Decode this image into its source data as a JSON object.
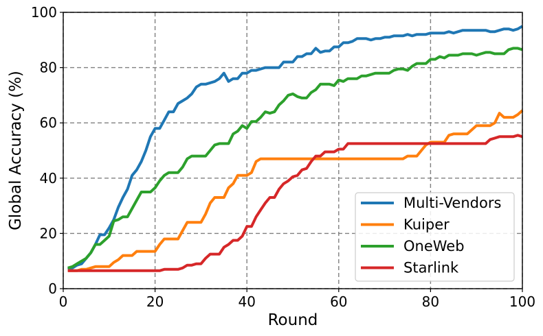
{
  "chart_data": {
    "type": "line",
    "title": "",
    "xlabel": "Round",
    "ylabel": "Global Accuracy (%)",
    "xlim": [
      0,
      100
    ],
    "ylim": [
      0,
      100
    ],
    "xticks": [
      0,
      20,
      40,
      60,
      80,
      100
    ],
    "yticks": [
      0,
      20,
      40,
      60,
      80,
      100
    ],
    "xtick_labels": [
      "0",
      "20",
      "40",
      "60",
      "80",
      "100"
    ],
    "ytick_labels": [
      "0",
      "20",
      "40",
      "60",
      "80",
      "100"
    ],
    "grid": true,
    "grid_style": "dashed",
    "legend_position": "lower-right",
    "series": [
      {
        "name": "Multi-Vendors",
        "color": "#1f77b4",
        "x": [
          1,
          2,
          3,
          4,
          5,
          6,
          7,
          8,
          9,
          10,
          11,
          12,
          13,
          14,
          15,
          16,
          17,
          18,
          19,
          20,
          21,
          22,
          23,
          24,
          25,
          26,
          27,
          28,
          29,
          30,
          31,
          32,
          33,
          34,
          35,
          36,
          37,
          38,
          39,
          40,
          41,
          42,
          43,
          44,
          45,
          46,
          47,
          48,
          49,
          50,
          51,
          52,
          53,
          54,
          55,
          56,
          57,
          58,
          59,
          60,
          61,
          62,
          63,
          64,
          65,
          66,
          67,
          68,
          69,
          70,
          71,
          72,
          73,
          74,
          75,
          76,
          77,
          78,
          79,
          80,
          81,
          82,
          83,
          84,
          85,
          86,
          87,
          88,
          89,
          90,
          91,
          92,
          93,
          94,
          95,
          96,
          97,
          98,
          99,
          100
        ],
        "y": [
          7,
          7.5,
          8.5,
          9,
          11,
          13,
          16,
          19.5,
          19.5,
          22,
          25,
          29.5,
          33,
          36,
          41,
          43,
          46,
          50,
          55,
          58,
          58,
          61,
          64,
          64,
          67,
          68,
          69,
          70.5,
          73,
          74,
          74,
          74.5,
          75,
          76,
          78,
          75,
          76,
          76,
          78,
          78,
          79,
          79,
          79.5,
          80,
          80,
          80,
          80,
          82,
          82,
          82,
          84,
          84,
          85,
          85,
          87,
          85.5,
          86,
          86,
          87.5,
          87.5,
          89,
          89,
          89.5,
          90.5,
          90.5,
          90.5,
          90,
          90.5,
          90.5,
          91,
          91,
          91.5,
          91.5,
          91.5,
          92,
          91.5,
          92,
          92,
          92,
          92.5,
          92.5,
          92.5,
          92.5,
          93,
          92.5,
          93,
          93.5,
          93.5,
          93.5,
          93.5,
          93.5,
          93.5,
          93,
          93,
          93.5,
          94,
          94,
          93.5,
          94,
          95
        ]
      },
      {
        "name": "Kuiper",
        "color": "#ff7f0e",
        "x": [
          1,
          2,
          3,
          4,
          5,
          6,
          7,
          8,
          9,
          10,
          11,
          12,
          13,
          14,
          15,
          16,
          17,
          18,
          19,
          20,
          21,
          22,
          23,
          24,
          25,
          26,
          27,
          28,
          29,
          30,
          31,
          32,
          33,
          34,
          35,
          36,
          37,
          38,
          39,
          40,
          41,
          42,
          43,
          44,
          45,
          46,
          47,
          48,
          49,
          50,
          51,
          52,
          53,
          54,
          55,
          56,
          57,
          58,
          59,
          60,
          61,
          62,
          63,
          64,
          65,
          66,
          67,
          68,
          69,
          70,
          71,
          72,
          73,
          74,
          75,
          76,
          77,
          78,
          79,
          80,
          81,
          82,
          83,
          84,
          85,
          86,
          87,
          88,
          89,
          90,
          91,
          92,
          93,
          94,
          95,
          96,
          97,
          98,
          99,
          100
        ],
        "y": [
          6.5,
          6.5,
          6.5,
          7,
          7,
          7.5,
          8,
          8,
          8,
          8,
          9.5,
          10.5,
          12,
          12,
          12,
          13.5,
          13.5,
          13.5,
          13.5,
          13.5,
          16,
          18,
          18,
          18,
          18,
          21,
          24,
          24,
          24,
          24,
          27,
          31,
          33,
          33,
          33,
          36.5,
          38,
          41,
          41,
          41,
          42,
          46,
          47,
          47,
          47,
          47,
          47,
          47,
          47,
          47,
          47,
          47,
          47,
          47,
          47,
          47,
          47,
          47,
          47,
          47,
          47,
          47,
          47,
          47,
          47,
          47,
          47,
          47,
          47,
          47,
          47,
          47,
          47,
          47,
          48,
          48,
          48,
          50,
          52,
          53,
          53,
          53,
          53,
          55.5,
          56,
          56,
          56,
          56,
          57.5,
          59,
          59,
          59,
          59,
          60,
          63.5,
          62,
          62,
          62,
          63,
          64.5
        ]
      },
      {
        "name": "OneWeb",
        "color": "#2ca02c",
        "x": [
          1,
          2,
          3,
          4,
          5,
          6,
          7,
          8,
          9,
          10,
          11,
          12,
          13,
          14,
          15,
          16,
          17,
          18,
          19,
          20,
          21,
          22,
          23,
          24,
          25,
          26,
          27,
          28,
          29,
          30,
          31,
          32,
          33,
          34,
          35,
          36,
          37,
          38,
          39,
          40,
          41,
          42,
          43,
          44,
          45,
          46,
          47,
          48,
          49,
          50,
          51,
          52,
          53,
          54,
          55,
          56,
          57,
          58,
          59,
          60,
          61,
          62,
          63,
          64,
          65,
          66,
          67,
          68,
          69,
          70,
          71,
          72,
          73,
          74,
          75,
          76,
          77,
          78,
          79,
          80,
          81,
          82,
          83,
          84,
          85,
          86,
          87,
          88,
          89,
          90,
          91,
          92,
          93,
          94,
          95,
          96,
          97,
          98,
          99,
          100
        ],
        "y": [
          7.5,
          8,
          9,
          10,
          11,
          13,
          16,
          16,
          17.5,
          19,
          24.5,
          25,
          26,
          26,
          29,
          32,
          35,
          35,
          35,
          36.5,
          39,
          41,
          42,
          42,
          42,
          44,
          47,
          48,
          48,
          48,
          48,
          50,
          52,
          52.5,
          52.5,
          52.5,
          56,
          57,
          59,
          58,
          60.5,
          60.5,
          62,
          64,
          63.5,
          64,
          66.5,
          68,
          70,
          70.5,
          69.5,
          69,
          69,
          71,
          72,
          74,
          74,
          74,
          73.5,
          75.5,
          75,
          76,
          76,
          76,
          77,
          77,
          77.5,
          78,
          78,
          78,
          78,
          79,
          79.5,
          79.5,
          79,
          80.5,
          81.5,
          81.5,
          81.5,
          83,
          83,
          84,
          83.5,
          84.5,
          84.5,
          84.5,
          85,
          85,
          85,
          84.5,
          85,
          85.5,
          85.5,
          85,
          85,
          85,
          86.5,
          87,
          87,
          86.5
        ]
      },
      {
        "name": "Starlink",
        "color": "#d62728",
        "x": [
          1,
          2,
          3,
          4,
          5,
          6,
          7,
          8,
          9,
          10,
          11,
          12,
          13,
          14,
          15,
          16,
          17,
          18,
          19,
          20,
          21,
          22,
          23,
          24,
          25,
          26,
          27,
          28,
          29,
          30,
          31,
          32,
          33,
          34,
          35,
          36,
          37,
          38,
          39,
          40,
          41,
          42,
          43,
          44,
          45,
          46,
          47,
          48,
          49,
          50,
          51,
          52,
          53,
          54,
          55,
          56,
          57,
          58,
          59,
          60,
          61,
          62,
          63,
          64,
          65,
          66,
          67,
          68,
          69,
          70,
          71,
          72,
          73,
          74,
          75,
          76,
          77,
          78,
          79,
          80,
          81,
          82,
          83,
          84,
          85,
          86,
          87,
          88,
          89,
          90,
          91,
          92,
          93,
          94,
          95,
          96,
          97,
          98,
          99,
          100
        ],
        "y": [
          6.5,
          6.5,
          6.5,
          6.5,
          6.5,
          6.5,
          6.5,
          6.5,
          6.5,
          6.5,
          6.5,
          6.5,
          6.5,
          6.5,
          6.5,
          6.5,
          6.5,
          6.5,
          6.5,
          6.5,
          6.5,
          7,
          7,
          7,
          7,
          7.5,
          8.5,
          8.5,
          9,
          9,
          11,
          12.5,
          12.5,
          12.5,
          15,
          16,
          17.5,
          17.5,
          19,
          22.5,
          22.5,
          26,
          28.5,
          31,
          33,
          33,
          36,
          38,
          39,
          40.5,
          41,
          43,
          43.5,
          46,
          48,
          48,
          49.5,
          49.5,
          49.5,
          50.5,
          50.5,
          52.5,
          52.5,
          52.5,
          52.5,
          52.5,
          52.5,
          52.5,
          52.5,
          52.5,
          52.5,
          52.5,
          52.5,
          52.5,
          52.5,
          52.5,
          52.5,
          52.5,
          52.5,
          52.5,
          52.5,
          52.5,
          52.5,
          52.5,
          52.5,
          52.5,
          52.5,
          52.5,
          52.5,
          52.5,
          52.5,
          52.5,
          54,
          54.5,
          55,
          55,
          55,
          55,
          55.5,
          55
        ]
      }
    ]
  }
}
